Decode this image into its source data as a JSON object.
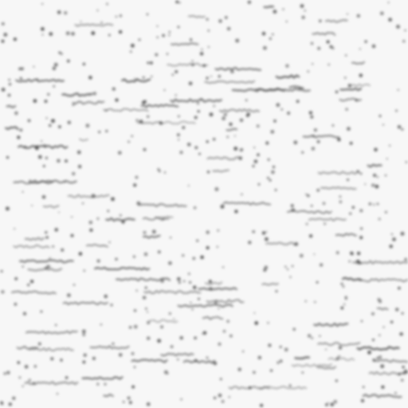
{
  "background": "#f7f7f7",
  "mark_color": "#3a3a3a",
  "content": "unreadable-blurred-text-noise",
  "text_lines": [],
  "labels": []
}
